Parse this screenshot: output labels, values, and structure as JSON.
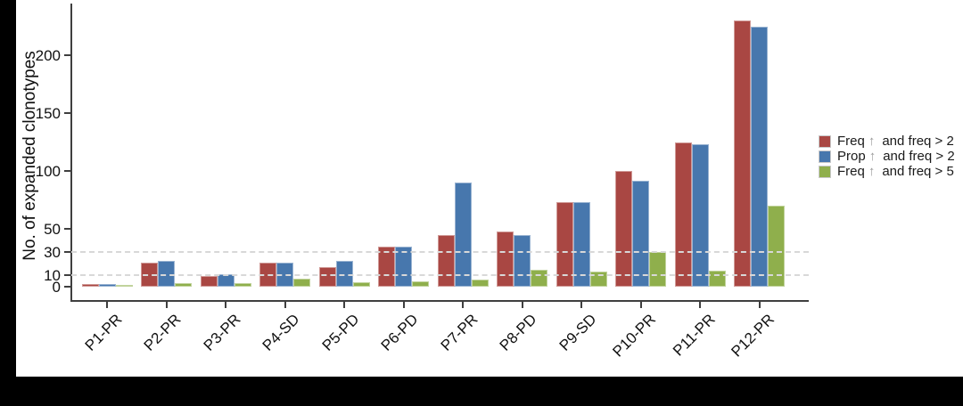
{
  "figure": {
    "ylabel": "No. of expanded clonotypes"
  },
  "legend": {
    "items": [
      {
        "prefix": "Freq",
        "arrow": "↑",
        "suffix": "and freq > 2",
        "color": "#A94743"
      },
      {
        "prefix": "Prop",
        "arrow": "↑",
        "suffix": "and freq > 2",
        "color": "#4777AD"
      },
      {
        "prefix": "Freq",
        "arrow": "↑",
        "suffix": "and freq > 5",
        "color": "#8FAF4C"
      }
    ]
  },
  "chart_data": {
    "type": "bar",
    "title": "",
    "xlabel": "",
    "ylabel": "No. of expanded clonotypes",
    "categories": [
      "P1-PR",
      "P2-PR",
      "P3-PR",
      "P4-SD",
      "P5-PD",
      "P6-PD",
      "P7-PR",
      "P8-PD",
      "P9-SD",
      "P10-PR",
      "P11-PR",
      "P12-PR"
    ],
    "series": [
      {
        "name": "Freq ↑ and freq > 2",
        "color": "#A94743",
        "values": [
          2,
          21,
          9,
          21,
          17,
          35,
          45,
          48,
          73,
          100,
          125,
          230
        ]
      },
      {
        "name": "Prop ↑ and freq > 2",
        "color": "#4777AD",
        "values": [
          2,
          22,
          11,
          21,
          22,
          35,
          90,
          45,
          73,
          92,
          123,
          225
        ]
      },
      {
        "name": "Freq ↑ and freq > 5",
        "color": "#8FAF4C",
        "values": [
          1,
          3,
          3,
          7,
          4,
          5,
          6,
          15,
          13,
          30,
          14,
          70
        ]
      }
    ],
    "yticks": [
      0,
      10,
      30,
      50,
      100,
      150,
      200
    ],
    "gridlines_dashed_at": [
      10,
      30
    ],
    "ylim": [
      0,
      245
    ],
    "grid": "horizontal dashed reference lines at y=10 and y=30 only",
    "legend_position": "right"
  }
}
